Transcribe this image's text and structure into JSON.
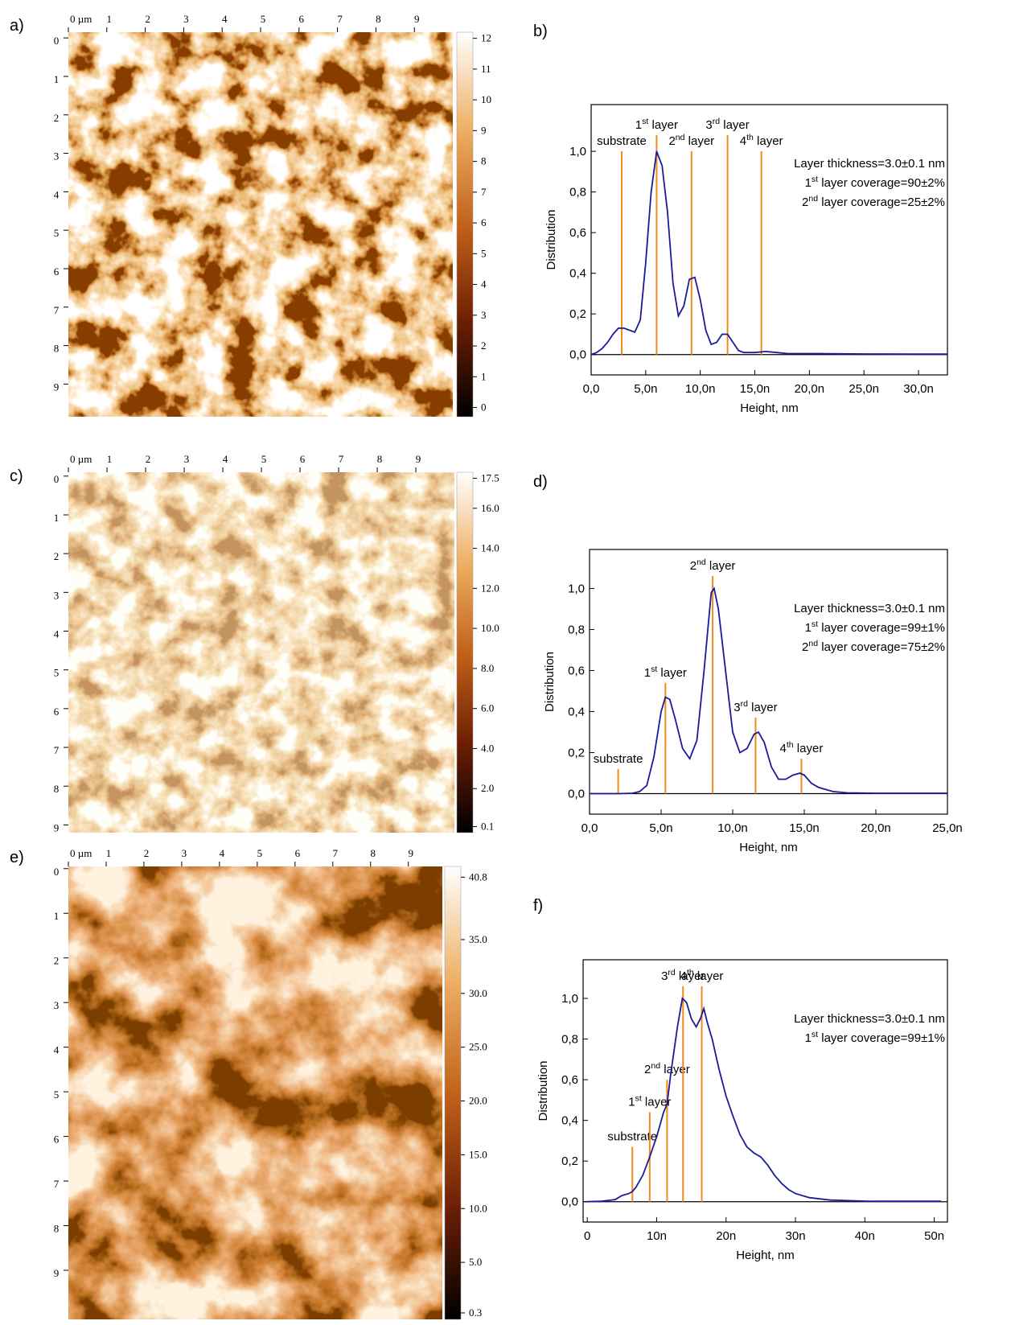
{
  "chart_data": [
    {
      "type": "heatmap",
      "panel": "a)",
      "xlim": [
        0,
        10
      ],
      "ylim": [
        -0.15,
        9.85
      ],
      "xticks": [
        {
          "value": 0,
          "label": "0 µm"
        },
        1,
        2,
        3,
        4,
        5,
        6,
        7,
        8,
        9
      ],
      "yticks": [
        0,
        1,
        2,
        3,
        4,
        5,
        6,
        7,
        8,
        9
      ],
      "clim": [
        -0.3,
        12.2
      ],
      "cticks": [
        0,
        1,
        2,
        3,
        4,
        5,
        6,
        7,
        8,
        9,
        10,
        11,
        12
      ]
    },
    {
      "type": "line",
      "panel": "b)",
      "xlabel": "Height, nm",
      "ylabel": "Distribution",
      "color": "#1a1a9a",
      "x": [
        0,
        0.5,
        1,
        1.5,
        2,
        2.5,
        3,
        3.5,
        4,
        4.5,
        5,
        5.5,
        6,
        6.5,
        7,
        7.5,
        8,
        8.5,
        9,
        9.5,
        10,
        10.5,
        11,
        11.5,
        12,
        12.5,
        13,
        13.5,
        14,
        15,
        16,
        17,
        18,
        20,
        25,
        30,
        32.6
      ],
      "values": [
        0,
        0.01,
        0.03,
        0.06,
        0.1,
        0.13,
        0.13,
        0.12,
        0.11,
        0.17,
        0.45,
        0.8,
        1.0,
        0.93,
        0.7,
        0.35,
        0.19,
        0.24,
        0.37,
        0.38,
        0.27,
        0.12,
        0.05,
        0.06,
        0.1,
        0.1,
        0.06,
        0.02,
        0.01,
        0.01,
        0.015,
        0.01,
        0.005,
        0.005,
        0.003,
        0.002,
        0.002
      ],
      "xlim": [
        0,
        32.65
      ],
      "ylim": [
        -0.1,
        1.23
      ],
      "xticks": [
        {
          "value": 0,
          "label": "0,0"
        },
        {
          "value": 5,
          "label": "5,0n"
        },
        {
          "value": 10,
          "label": "10,0n"
        },
        {
          "value": 15,
          "label": "15,0n"
        },
        {
          "value": 20,
          "label": "20,0n"
        },
        {
          "value": 25,
          "label": "25,0n"
        },
        {
          "value": 30,
          "label": "30,0n"
        }
      ],
      "yticks": [
        {
          "value": 0,
          "label": "0,0"
        },
        {
          "value": 0.2,
          "label": "0,2"
        },
        {
          "value": 0.4,
          "label": "0,4"
        },
        {
          "value": 0.6,
          "label": "0,6"
        },
        {
          "value": 0.8,
          "label": "0,8"
        },
        {
          "value": 1,
          "label": "1,0"
        }
      ],
      "annotation_color": "#f08a1c",
      "annotations": [
        {
          "x": 2.8,
          "top": 1.0,
          "text": [
            "substrate"
          ]
        },
        {
          "x": 6.0,
          "top": 1.08,
          "text": [
            "1",
            "st",
            " layer"
          ]
        },
        {
          "x": 9.2,
          "top": 1.0,
          "text": [
            "2",
            "nd",
            " layer"
          ]
        },
        {
          "x": 12.5,
          "top": 1.08,
          "text": [
            "3",
            "rd",
            " layer"
          ]
        },
        {
          "x": 15.6,
          "top": 1.0,
          "text": [
            "4",
            "th",
            " layer"
          ]
        }
      ],
      "note_color": "#2323a0",
      "notes": [
        [
          "Layer thickness=3.0±0.1 nm"
        ],
        [
          "1",
          "st",
          " layer coverage=90±2%"
        ],
        [
          "2",
          "nd",
          " layer coverage=25±2%"
        ]
      ]
    },
    {
      "type": "heatmap",
      "panel": "c)",
      "xlim": [
        0,
        10
      ],
      "ylim": [
        -0.1,
        9.2
      ],
      "xticks": [
        {
          "value": 0,
          "label": "0 µm"
        },
        1,
        2,
        3,
        4,
        5,
        6,
        7,
        8,
        9
      ],
      "yticks": [
        0,
        1,
        2,
        3,
        4,
        5,
        6,
        7,
        8,
        9
      ],
      "clim": [
        -0.2,
        17.8
      ],
      "cticks": [
        0.1,
        {
          "value": 2,
          "label": "2.0"
        },
        {
          "value": 4,
          "label": "4.0"
        },
        {
          "value": 6,
          "label": "6.0"
        },
        {
          "value": 8,
          "label": "8.0"
        },
        {
          "value": 10,
          "label": "10.0"
        },
        {
          "value": 12,
          "label": "12.0"
        },
        {
          "value": 14,
          "label": "14.0"
        },
        {
          "value": 16,
          "label": "16.0"
        },
        17.5
      ]
    },
    {
      "type": "line",
      "panel": "d)",
      "xlabel": "Height, nm",
      "ylabel": "Distribution",
      "color": "#1a1a9a",
      "x": [
        0,
        2,
        3,
        3.5,
        4,
        4.5,
        5,
        5.3,
        5.6,
        6,
        6.5,
        7,
        7.5,
        8,
        8.5,
        8.7,
        9,
        9.5,
        10,
        10.5,
        11,
        11.5,
        11.8,
        12.2,
        12.7,
        13.2,
        13.7,
        14.2,
        14.7,
        15,
        15.5,
        16,
        17,
        18,
        20,
        25
      ],
      "values": [
        0,
        0,
        0.002,
        0.01,
        0.04,
        0.18,
        0.4,
        0.47,
        0.46,
        0.36,
        0.22,
        0.17,
        0.26,
        0.6,
        0.98,
        1.0,
        0.9,
        0.6,
        0.3,
        0.2,
        0.22,
        0.29,
        0.3,
        0.25,
        0.13,
        0.07,
        0.07,
        0.09,
        0.1,
        0.09,
        0.05,
        0.03,
        0.01,
        0.004,
        0.002,
        0.002
      ],
      "xlim": [
        0,
        25
      ],
      "ylim": [
        -0.1,
        1.19
      ],
      "xticks": [
        {
          "value": 0,
          "label": "0,0"
        },
        {
          "value": 5,
          "label": "5,0n"
        },
        {
          "value": 10,
          "label": "10,0n"
        },
        {
          "value": 15,
          "label": "15,0n"
        },
        {
          "value": 20,
          "label": "20,0n"
        },
        {
          "value": 25,
          "label": "25,0n"
        }
      ],
      "yticks": [
        {
          "value": 0,
          "label": "0,0"
        },
        {
          "value": 0.2,
          "label": "0,2"
        },
        {
          "value": 0.4,
          "label": "0,4"
        },
        {
          "value": 0.6,
          "label": "0,6"
        },
        {
          "value": 0.8,
          "label": "0,8"
        },
        {
          "value": 1,
          "label": "1,0"
        }
      ],
      "annotation_color": "#f08a1c",
      "annotations": [
        {
          "x": 2.0,
          "top": 0.12,
          "text": [
            "substrate"
          ]
        },
        {
          "x": 5.3,
          "top": 0.54,
          "text": [
            "1",
            "st",
            " layer"
          ]
        },
        {
          "x": 8.6,
          "top": 1.06,
          "text": [
            "2",
            "nd",
            " layer"
          ]
        },
        {
          "x": 11.6,
          "top": 0.37,
          "text": [
            "3",
            "rd",
            " layer"
          ]
        },
        {
          "x": 14.8,
          "top": 0.17,
          "text": [
            "4",
            "th",
            " layer"
          ]
        }
      ],
      "note_color": "#2323a0",
      "notes": [
        [
          "Layer thickness=3.0±0.1 nm"
        ],
        [
          "1",
          "st",
          " layer coverage=99±1%"
        ],
        [
          "2",
          "nd",
          " layer coverage=75±2%"
        ]
      ]
    },
    {
      "type": "heatmap",
      "panel": "e)",
      "xlim": [
        0,
        9.9
      ],
      "ylim": [
        -0.05,
        10.1
      ],
      "xticks": [
        {
          "value": 0,
          "label": "0 µm"
        },
        1,
        2,
        3,
        4,
        5,
        6,
        7,
        8,
        9
      ],
      "yticks": [
        0,
        1,
        2,
        3,
        4,
        5,
        6,
        7,
        8,
        9
      ],
      "clim": [
        -0.3,
        41.8
      ],
      "cticks": [
        0.3,
        {
          "value": 5,
          "label": "5.0"
        },
        {
          "value": 10,
          "label": "10.0"
        },
        {
          "value": 15,
          "label": "15.0"
        },
        {
          "value": 20,
          "label": "20.0"
        },
        {
          "value": 25,
          "label": "25.0"
        },
        {
          "value": 30,
          "label": "30.0"
        },
        {
          "value": 35,
          "label": "35.0"
        },
        40.8
      ]
    },
    {
      "type": "line",
      "panel": "f)",
      "xlabel": "Height, nm",
      "ylabel": "Distribution",
      "color": "#1a1a9a",
      "x": [
        0,
        2,
        4,
        5,
        6,
        6.5,
        7,
        8,
        9,
        10,
        11,
        11.5,
        12,
        13,
        13.7,
        14.3,
        15,
        15.7,
        16.3,
        16.8,
        17.3,
        18,
        19,
        20,
        21,
        22,
        23,
        24,
        25,
        26,
        27,
        28,
        29,
        30,
        32,
        35,
        40,
        45,
        51
      ],
      "values": [
        0,
        0.002,
        0.01,
        0.03,
        0.04,
        0.05,
        0.07,
        0.13,
        0.22,
        0.32,
        0.44,
        0.48,
        0.62,
        0.86,
        1.0,
        0.98,
        0.9,
        0.86,
        0.9,
        0.95,
        0.88,
        0.8,
        0.65,
        0.52,
        0.42,
        0.33,
        0.27,
        0.24,
        0.22,
        0.18,
        0.13,
        0.09,
        0.06,
        0.04,
        0.02,
        0.008,
        0.003,
        0.002,
        0.002
      ],
      "xlim": [
        -0.6,
        51.9
      ],
      "ylim": [
        -0.1,
        1.19
      ],
      "xticks": [
        0,
        {
          "value": 10,
          "label": "10n"
        },
        {
          "value": 20,
          "label": "20n"
        },
        {
          "value": 30,
          "label": "30n"
        },
        {
          "value": 40,
          "label": "40n"
        },
        {
          "value": 50,
          "label": "50n"
        }
      ],
      "yticks": [
        {
          "value": 0,
          "label": "0,0"
        },
        {
          "value": 0.2,
          "label": "0,2"
        },
        {
          "value": 0.4,
          "label": "0,4"
        },
        {
          "value": 0.6,
          "label": "0,6"
        },
        {
          "value": 0.8,
          "label": "0,8"
        },
        {
          "value": 1,
          "label": "1,0"
        }
      ],
      "annotation_color": "#f08a1c",
      "annotations": [
        {
          "x": 6.5,
          "top": 0.27,
          "text": [
            "substrate"
          ]
        },
        {
          "x": 9.0,
          "top": 0.44,
          "text": [
            "1",
            "st",
            " layer"
          ]
        },
        {
          "x": 11.5,
          "top": 0.6,
          "text": [
            "2",
            "nd",
            " layer"
          ]
        },
        {
          "x": 13.8,
          "top": 1.06,
          "text": [
            "3",
            "rd",
            " layer"
          ]
        },
        {
          "x": 16.5,
          "top": 1.06,
          "text": [
            "4",
            "th",
            " layer"
          ]
        }
      ],
      "note_color": "#2323a0",
      "notes": [
        [
          "Layer thickness=3.0±0.1 nm"
        ],
        [
          "1",
          "st",
          " layer coverage=99±1%"
        ]
      ]
    }
  ]
}
